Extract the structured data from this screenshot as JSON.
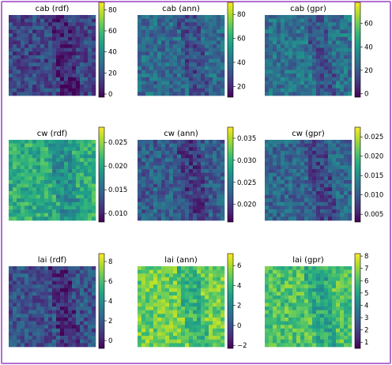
{
  "palette": {
    "viridis": [
      "#440154",
      "#482878",
      "#3e4989",
      "#31688e",
      "#26828e",
      "#1f9e89",
      "#35b779",
      "#6ece58",
      "#b5de2b",
      "#fde725"
    ],
    "frame": "#b36fd0"
  },
  "chart_data": [
    {
      "type": "heatmap",
      "title": "cab (rdf)",
      "colorbar": {
        "ticks": [
          "0",
          "20",
          "40",
          "60",
          "80"
        ],
        "range": [
          -3,
          87
        ]
      },
      "tone": 0.22
    },
    {
      "type": "heatmap",
      "title": "cab (ann)",
      "colorbar": {
        "ticks": [
          "20",
          "40",
          "60",
          "80"
        ],
        "range": [
          11,
          90
        ]
      },
      "tone": 0.35
    },
    {
      "type": "heatmap",
      "title": "cab (gpr)",
      "colorbar": {
        "ticks": [
          "0",
          "20",
          "40",
          "60"
        ],
        "range": [
          -3,
          78
        ]
      },
      "tone": 0.38
    },
    {
      "type": "heatmap",
      "title": "cw (rdf)",
      "colorbar": {
        "ticks": [
          "0.010",
          "0.015",
          "0.020",
          "0.025"
        ],
        "range": [
          0.0082,
          0.0282
        ]
      },
      "tone": 0.62
    },
    {
      "type": "heatmap",
      "title": "cw (ann)",
      "colorbar": {
        "ticks": [
          "0.020",
          "0.025",
          "0.030",
          "0.035"
        ],
        "range": [
          0.016,
          0.0375
        ]
      },
      "tone": 0.3
    },
    {
      "type": "heatmap",
      "title": "cw (gpr)",
      "colorbar": {
        "ticks": [
          "0.005",
          "0.010",
          "0.015",
          "0.020",
          "0.025"
        ],
        "range": [
          0.003,
          0.0275
        ]
      },
      "tone": 0.33
    },
    {
      "type": "heatmap",
      "title": "lai (rdf)",
      "colorbar": {
        "ticks": [
          "0",
          "2",
          "4",
          "6",
          "8"
        ],
        "range": [
          -0.8,
          8.8
        ]
      },
      "tone": 0.25
    },
    {
      "type": "heatmap",
      "title": "lai (ann)",
      "colorbar": {
        "ticks": [
          "−2",
          "0",
          "2",
          "4",
          "6"
        ],
        "range": [
          -2.3,
          7.2
        ]
      },
      "tone": 0.78
    },
    {
      "type": "heatmap",
      "title": "lai (gpr)",
      "colorbar": {
        "ticks": [
          "1",
          "2",
          "3",
          "4",
          "5",
          "6",
          "7",
          "8"
        ],
        "range": [
          0.5,
          8.2
        ]
      },
      "tone": 0.72
    }
  ]
}
